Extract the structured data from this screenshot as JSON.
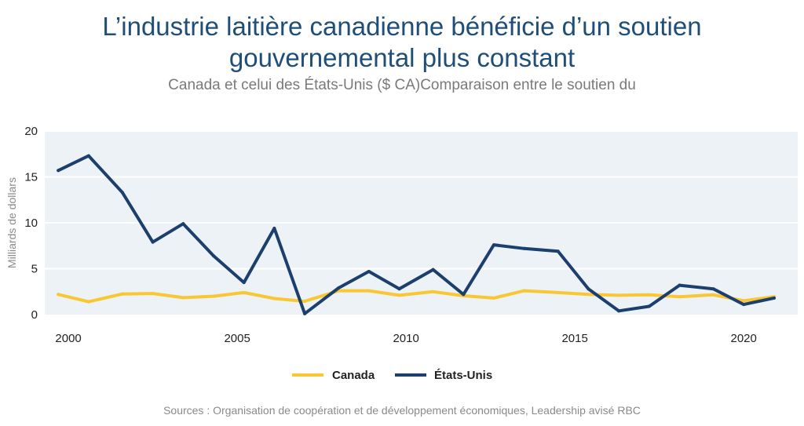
{
  "title_lines": [
    "L’industrie laitière canadienne bénéficie d’un soutien",
    "gouvernemental plus constant"
  ],
  "subtitle": "Canada et celui des États-Unis ($ CA)Comparaison entre le soutien du",
  "source": "Sources : Organisation de coopération et de développement économiques, Leadership avisé RBC",
  "colors": {
    "plot_background": "#edf2f6",
    "grid": "#ffffff",
    "canada": "#f9c733",
    "us": "#1c3f6e"
  },
  "chart_data": {
    "type": "line",
    "title": "L’industrie laitière canadienne bénéficie d’un soutien gouvernemental plus constant",
    "subtitle": "Canada et celui des États-Unis ($ CA)Comparaison entre le soutien du",
    "xlabel": "",
    "ylabel": "Milliards de dollars",
    "x": [
      1999.7,
      2000.6,
      2001.6,
      2002.5,
      2003.4,
      2004.3,
      2005.2,
      2006.1,
      2007.0,
      2008.0,
      2008.9,
      2009.8,
      2010.8,
      2011.7,
      2012.6,
      2013.5,
      2014.5,
      2015.4,
      2016.3,
      2017.2,
      2018.1,
      2019.1,
      2020.0,
      2020.9
    ],
    "xticks": [
      2000,
      2005,
      2010,
      2015,
      2020
    ],
    "xlim": [
      1999.3,
      2021.6
    ],
    "ylim": [
      0,
      20
    ],
    "yticks": [
      0,
      5,
      10,
      15,
      20
    ],
    "grid": true,
    "legend_position": "bottom-center",
    "series": [
      {
        "name": "Canada",
        "values": [
          2.2,
          1.4,
          2.25,
          2.3,
          1.85,
          2.0,
          2.4,
          1.75,
          1.45,
          2.6,
          2.6,
          2.1,
          2.5,
          2.05,
          1.8,
          2.6,
          2.4,
          2.2,
          2.1,
          2.15,
          1.95,
          2.15,
          1.5,
          1.95
        ]
      },
      {
        "name": "États-Unis",
        "values": [
          15.7,
          17.3,
          13.3,
          7.9,
          9.9,
          6.4,
          3.5,
          9.4,
          0.1,
          2.9,
          4.7,
          2.8,
          4.9,
          2.2,
          7.6,
          7.2,
          6.9,
          2.8,
          0.4,
          0.9,
          3.2,
          2.8,
          1.1,
          1.8
        ]
      }
    ]
  }
}
